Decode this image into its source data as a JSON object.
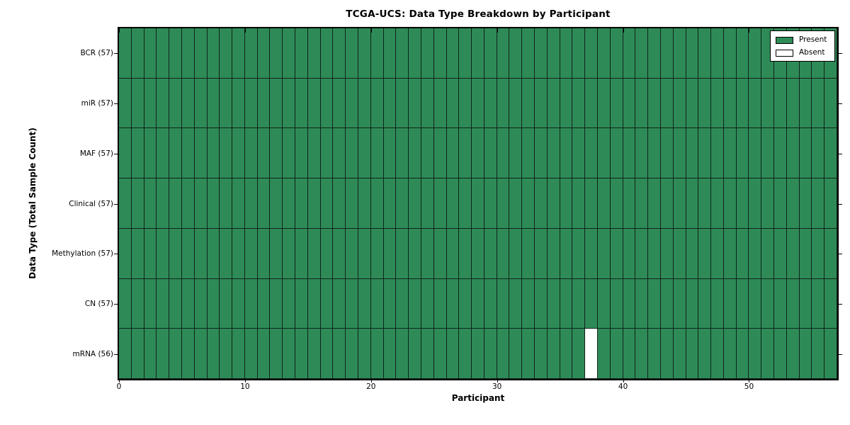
{
  "chart_data": {
    "type": "heatmap",
    "title": "TCGA-UCS: Data Type Breakdown by Participant",
    "xlabel": "Participant",
    "ylabel": "Data Type (Total Sample Count)",
    "x_range": [
      0,
      57
    ],
    "n_participants": 57,
    "x_tick_values": [
      0,
      10,
      20,
      30,
      40,
      50
    ],
    "x_tick_labels": [
      "0",
      "10",
      "20",
      "30",
      "40",
      "50"
    ],
    "grid": true,
    "legend_position": "upper-right",
    "rows": [
      {
        "label": "BCR (57)",
        "present_count": 57,
        "absent_participants": []
      },
      {
        "label": "miR (57)",
        "present_count": 57,
        "absent_participants": []
      },
      {
        "label": "MAF (57)",
        "present_count": 57,
        "absent_participants": []
      },
      {
        "label": "Clinical (57)",
        "present_count": 57,
        "absent_participants": []
      },
      {
        "label": "Methylation (57)",
        "present_count": 57,
        "absent_participants": []
      },
      {
        "label": "CN (57)",
        "present_count": 57,
        "absent_participants": []
      },
      {
        "label": "mRNA (56)",
        "present_count": 56,
        "absent_participants": [
          37
        ]
      }
    ],
    "legend": [
      {
        "label": "Present",
        "color": "#2e8b57"
      },
      {
        "label": "Absent",
        "color": "#ffffff"
      }
    ],
    "colors": {
      "present": "#2e8b57",
      "absent": "#ffffff",
      "cell_edge": "#10231a",
      "axis": "#000000",
      "background": "#ffffff"
    }
  }
}
